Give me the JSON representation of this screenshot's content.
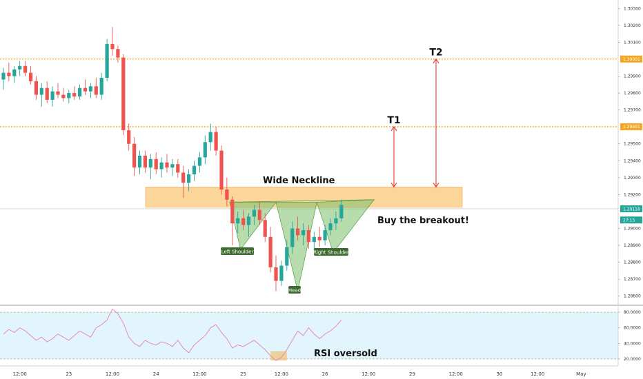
{
  "chart_data": [
    {
      "type": "candlestick",
      "ylim": [
        1.2855,
        1.3035
      ],
      "y_ticks": [
        {
          "v": 1.303,
          "label": "1.30300"
        },
        {
          "v": 1.302,
          "label": "1.30200"
        },
        {
          "v": 1.301,
          "label": "1.30100"
        },
        {
          "v": 1.299,
          "label": "1.29900"
        },
        {
          "v": 1.298,
          "label": "1.29800"
        },
        {
          "v": 1.297,
          "label": "1.29700"
        },
        {
          "v": 1.295,
          "label": "1.29500"
        },
        {
          "v": 1.294,
          "label": "1.29400"
        },
        {
          "v": 1.293,
          "label": "1.29300"
        },
        {
          "v": 1.292,
          "label": "1.29200"
        },
        {
          "v": 1.29,
          "label": "1.29000"
        },
        {
          "v": 1.289,
          "label": "1.28900"
        },
        {
          "v": 1.288,
          "label": "1.28800"
        },
        {
          "v": 1.287,
          "label": "1.28700"
        },
        {
          "v": 1.286,
          "label": "1.28600"
        }
      ],
      "price_tags": [
        {
          "v": 1.30001,
          "label": "1.30001",
          "color": "#f5a623"
        },
        {
          "v": 1.29601,
          "label": "1.29601",
          "color": "#f5a623"
        },
        {
          "v": 1.29116,
          "label": "1.29116",
          "color": "#26a69a"
        },
        {
          "v": 1.2905,
          "label": "27:15",
          "color": "#26a69a"
        }
      ],
      "horizontal_lines": [
        {
          "v": 1.30001,
          "color": "#f5a623",
          "style": "dotted"
        },
        {
          "v": 1.29601,
          "color": "#f5a623",
          "style": "dotted"
        },
        {
          "v": 1.29116,
          "color": "#c8c8c8",
          "style": "solid"
        }
      ],
      "neckline_zone": {
        "y_top": 1.29245,
        "y_bottom": 1.29125,
        "color": "#fbc77a"
      },
      "targets": [
        {
          "label": "T1",
          "from": 1.29245,
          "to": 1.29601
        },
        {
          "label": "T2",
          "from": 1.29245,
          "to": 1.30001
        }
      ],
      "annotations": [
        {
          "text": "Wide Neckline"
        },
        {
          "text": "Buy the breakout!"
        }
      ],
      "pattern_labels": [
        "Left Shoulder",
        "Head",
        "Right Shoulder"
      ],
      "up_color": "#26a69a",
      "down_color": "#ef5350",
      "ohlc": [
        [
          1.2988,
          1.2995,
          1.2982,
          1.2992
        ],
        [
          1.2992,
          1.2998,
          1.2987,
          1.299
        ],
        [
          1.299,
          1.2996,
          1.2986,
          1.2994
        ],
        [
          1.2994,
          1.2999,
          1.299,
          1.2996
        ],
        [
          1.2996,
          1.2999,
          1.299,
          1.2992
        ],
        [
          1.2992,
          1.2996,
          1.2985,
          1.2987
        ],
        [
          1.2987,
          1.299,
          1.2976,
          1.2979
        ],
        [
          1.2979,
          1.2986,
          1.2972,
          1.2983
        ],
        [
          1.2983,
          1.2987,
          1.2974,
          1.2976
        ],
        [
          1.2976,
          1.2984,
          1.2972,
          1.2981
        ],
        [
          1.2981,
          1.2986,
          1.2977,
          1.2979
        ],
        [
          1.2979,
          1.2983,
          1.2975,
          1.2977
        ],
        [
          1.2977,
          1.2982,
          1.2974,
          1.298
        ],
        [
          1.298,
          1.2984,
          1.2976,
          1.2978
        ],
        [
          1.2978,
          1.2985,
          1.2976,
          1.2983
        ],
        [
          1.2983,
          1.2988,
          1.2979,
          1.2981
        ],
        [
          1.2981,
          1.2986,
          1.2977,
          1.2984
        ],
        [
          1.2984,
          1.2989,
          1.2977,
          1.2979
        ],
        [
          1.2979,
          1.2992,
          1.2976,
          1.2989
        ],
        [
          1.2989,
          1.3012,
          1.2987,
          1.3009
        ],
        [
          1.3009,
          1.3019,
          1.3002,
          1.3006
        ],
        [
          1.3006,
          1.3008,
          1.2998,
          1.3001
        ],
        [
          1.3001,
          1.3003,
          1.2955,
          1.2958
        ],
        [
          1.2958,
          1.2962,
          1.2946,
          1.295
        ],
        [
          1.295,
          1.2954,
          1.2931,
          1.2936
        ],
        [
          1.2936,
          1.2946,
          1.2932,
          1.2943
        ],
        [
          1.2943,
          1.2946,
          1.2933,
          1.2936
        ],
        [
          1.2936,
          1.2944,
          1.2929,
          1.2941
        ],
        [
          1.2941,
          1.2945,
          1.2932,
          1.2935
        ],
        [
          1.2935,
          1.2942,
          1.293,
          1.2939
        ],
        [
          1.2939,
          1.2944,
          1.2933,
          1.2936
        ],
        [
          1.2936,
          1.2941,
          1.2931,
          1.2938
        ],
        [
          1.2938,
          1.2941,
          1.293,
          1.2933
        ],
        [
          1.2933,
          1.2937,
          1.2918,
          1.2927
        ],
        [
          1.2927,
          1.2935,
          1.2922,
          1.2932
        ],
        [
          1.2932,
          1.294,
          1.2928,
          1.2937
        ],
        [
          1.2937,
          1.2945,
          1.2933,
          1.2942
        ],
        [
          1.2942,
          1.2955,
          1.2938,
          1.2951
        ],
        [
          1.2951,
          1.2962,
          1.2946,
          1.2957
        ],
        [
          1.2957,
          1.296,
          1.2943,
          1.2946
        ],
        [
          1.2946,
          1.2949,
          1.292,
          1.2923
        ],
        [
          1.2923,
          1.293,
          1.2913,
          1.2917
        ],
        [
          1.2917,
          1.2919,
          1.289,
          1.2903
        ],
        [
          1.2903,
          1.291,
          1.2897,
          1.2906
        ],
        [
          1.2906,
          1.2911,
          1.2899,
          1.2902
        ],
        [
          1.2902,
          1.2909,
          1.2895,
          1.2907
        ],
        [
          1.2907,
          1.2914,
          1.2902,
          1.2911
        ],
        [
          1.2911,
          1.2916,
          1.2902,
          1.2905
        ],
        [
          1.2905,
          1.2909,
          1.2892,
          1.2895
        ],
        [
          1.2895,
          1.2901,
          1.2874,
          1.2877
        ],
        [
          1.2877,
          1.2884,
          1.2863,
          1.2869
        ],
        [
          1.2869,
          1.2881,
          1.2866,
          1.2878
        ],
        [
          1.2878,
          1.2893,
          1.2875,
          1.2889
        ],
        [
          1.2889,
          1.2904,
          1.2885,
          1.29
        ],
        [
          1.29,
          1.2907,
          1.2893,
          1.2896
        ],
        [
          1.2896,
          1.2903,
          1.289,
          1.2899
        ],
        [
          1.2899,
          1.2902,
          1.2888,
          1.2892
        ],
        [
          1.2892,
          1.2898,
          1.2887,
          1.2895
        ],
        [
          1.2895,
          1.2901,
          1.2889,
          1.2893
        ],
        [
          1.2893,
          1.2902,
          1.289,
          1.2899
        ],
        [
          1.2899,
          1.2906,
          1.2896,
          1.2903
        ],
        [
          1.2903,
          1.291,
          1.2899,
          1.2906
        ],
        [
          1.2906,
          1.2917,
          1.2904,
          1.2914
        ]
      ]
    },
    {
      "type": "line",
      "label": "RSI oversold",
      "ylim": [
        12,
        88
      ],
      "y_ticks": [
        {
          "v": 80,
          "label": "80.0000"
        },
        {
          "v": 60,
          "label": "60.0000"
        },
        {
          "v": 40,
          "label": "40.0000"
        },
        {
          "v": 20,
          "label": "20.0000"
        }
      ],
      "band": [
        20,
        80
      ],
      "series_color": "#e48bb5",
      "values": [
        52,
        58,
        54,
        60,
        56,
        50,
        44,
        48,
        42,
        46,
        52,
        48,
        44,
        50,
        56,
        52,
        48,
        60,
        64,
        70,
        84,
        78,
        66,
        48,
        40,
        36,
        44,
        40,
        38,
        42,
        40,
        36,
        44,
        34,
        28,
        38,
        44,
        50,
        60,
        64,
        54,
        46,
        34,
        38,
        36,
        40,
        44,
        38,
        32,
        24,
        18,
        22,
        32,
        44,
        56,
        50,
        60,
        52,
        46,
        52,
        56,
        62,
        70
      ],
      "oversold_box": {
        "x_from": 49,
        "x_to": 52,
        "y_from": 18,
        "y_to": 30
      }
    }
  ],
  "x_axis": {
    "labels": [
      {
        "i": 3,
        "label": "12:00"
      },
      {
        "i": 12,
        "label": "23"
      },
      {
        "i": 20,
        "label": "12:00"
      },
      {
        "i": 28,
        "label": "24"
      },
      {
        "i": 36,
        "label": "12:00"
      },
      {
        "i": 44,
        "label": "25"
      },
      {
        "i": 51,
        "label": "12:00"
      },
      {
        "i": 59,
        "label": "26"
      },
      {
        "i": 67,
        "label": "12:00"
      },
      {
        "i": 75,
        "label": "29"
      },
      {
        "i": 83,
        "label": "12:00"
      },
      {
        "i": 91,
        "label": "30"
      },
      {
        "i": 98,
        "label": "12:00"
      },
      {
        "i": 106,
        "label": "May"
      }
    ]
  }
}
